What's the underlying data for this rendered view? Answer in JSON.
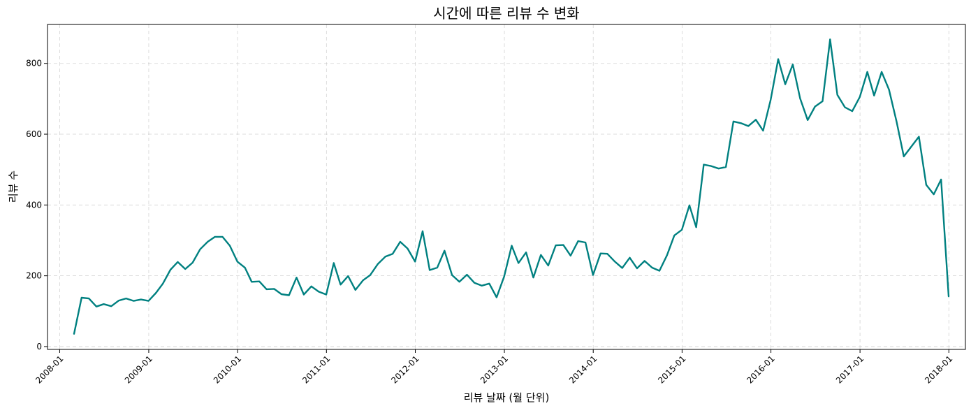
{
  "chart_data": {
    "type": "line",
    "title": "시간에 따른 리뷰 수 변화",
    "xlabel": "리뷰 날짜 (월 단위)",
    "ylabel": "리뷰 수",
    "x_ticks": [
      "2008-01",
      "2009-01",
      "2010-01",
      "2011-01",
      "2012-01",
      "2013-01",
      "2014-01",
      "2015-01",
      "2016-01",
      "2017-01",
      "2018-01"
    ],
    "y_ticks": [
      0,
      200,
      400,
      600,
      800
    ],
    "xlim": [
      "2007-11-12",
      "2018-03-10"
    ],
    "ylim": [
      -8,
      910
    ],
    "grid": true,
    "line_color": "#008080",
    "series": [
      {
        "x": [
          "2008-02-29",
          "2008-03-31",
          "2008-04-30",
          "2008-05-31",
          "2008-06-30",
          "2008-07-31",
          "2008-08-31",
          "2008-09-30",
          "2008-10-31",
          "2008-11-30",
          "2008-12-31",
          "2009-01-31",
          "2009-02-28",
          "2009-03-31",
          "2009-04-30",
          "2009-05-31",
          "2009-06-30",
          "2009-07-31",
          "2009-08-31",
          "2009-09-30",
          "2009-10-31",
          "2009-11-30",
          "2009-12-31",
          "2010-01-31",
          "2010-02-28",
          "2010-03-31",
          "2010-04-30",
          "2010-05-31",
          "2010-06-30",
          "2010-07-31",
          "2010-08-31",
          "2010-09-30",
          "2010-10-31",
          "2010-11-30",
          "2010-12-31",
          "2011-01-31",
          "2011-02-28",
          "2011-03-31",
          "2011-04-30",
          "2011-05-31",
          "2011-06-30",
          "2011-07-31",
          "2011-08-31",
          "2011-09-30",
          "2011-10-31",
          "2011-11-30",
          "2011-12-31",
          "2012-01-31",
          "2012-02-29",
          "2012-03-31",
          "2012-04-30",
          "2012-05-31",
          "2012-06-30",
          "2012-07-31",
          "2012-08-31",
          "2012-09-30",
          "2012-10-31",
          "2012-11-30",
          "2012-12-31",
          "2013-01-31",
          "2013-02-28",
          "2013-03-31",
          "2013-04-30",
          "2013-05-31",
          "2013-06-30",
          "2013-07-31",
          "2013-08-31",
          "2013-09-30",
          "2013-10-31",
          "2013-11-30",
          "2013-12-31",
          "2014-01-31",
          "2014-02-28",
          "2014-03-31",
          "2014-04-30",
          "2014-05-31",
          "2014-06-30",
          "2014-07-31",
          "2014-08-31",
          "2014-09-30",
          "2014-10-31",
          "2014-11-30",
          "2014-12-31",
          "2015-01-31",
          "2015-02-28",
          "2015-03-31",
          "2015-04-30",
          "2015-05-31",
          "2015-06-30",
          "2015-07-31",
          "2015-08-31",
          "2015-09-30",
          "2015-10-31",
          "2015-11-30",
          "2015-12-31",
          "2016-01-31",
          "2016-02-29",
          "2016-03-31",
          "2016-04-30",
          "2016-05-31",
          "2016-06-30",
          "2016-07-31",
          "2016-08-31",
          "2016-09-30",
          "2016-10-31",
          "2016-11-30",
          "2016-12-31",
          "2017-01-31",
          "2017-02-28",
          "2017-03-31",
          "2017-04-30",
          "2017-05-31",
          "2017-06-30",
          "2017-08-31",
          "2017-09-30",
          "2017-10-31",
          "2017-11-30",
          "2017-12-31"
        ],
        "y": [
          36,
          138,
          136,
          113,
          120,
          114,
          130,
          136,
          129,
          133,
          129,
          152,
          178,
          217,
          239,
          219,
          237,
          275,
          296,
          310,
          310,
          285,
          240,
          223,
          183,
          184,
          162,
          163,
          148,
          145,
          195,
          147,
          170,
          155,
          147,
          236,
          175,
          199,
          160,
          187,
          202,
          233,
          254,
          262,
          296,
          277,
          240,
          326,
          216,
          223,
          271,
          202,
          183,
          203,
          180,
          172,
          178,
          139,
          198,
          285,
          236,
          266,
          195,
          259,
          229,
          286,
          287,
          257,
          298,
          294,
          202,
          263,
          262,
          240,
          222,
          251,
          221,
          242,
          223,
          214,
          258,
          314,
          330,
          399,
          337,
          514,
          510,
          503,
          507,
          636,
          631,
          623,
          641,
          610,
          697,
          812,
          741,
          797,
          701,
          640,
          678,
          693,
          868,
          711,
          676,
          665,
          705,
          776,
          709,
          776,
          726,
          636,
          537,
          593,
          457,
          430,
          472,
          142
        ]
      }
    ]
  }
}
